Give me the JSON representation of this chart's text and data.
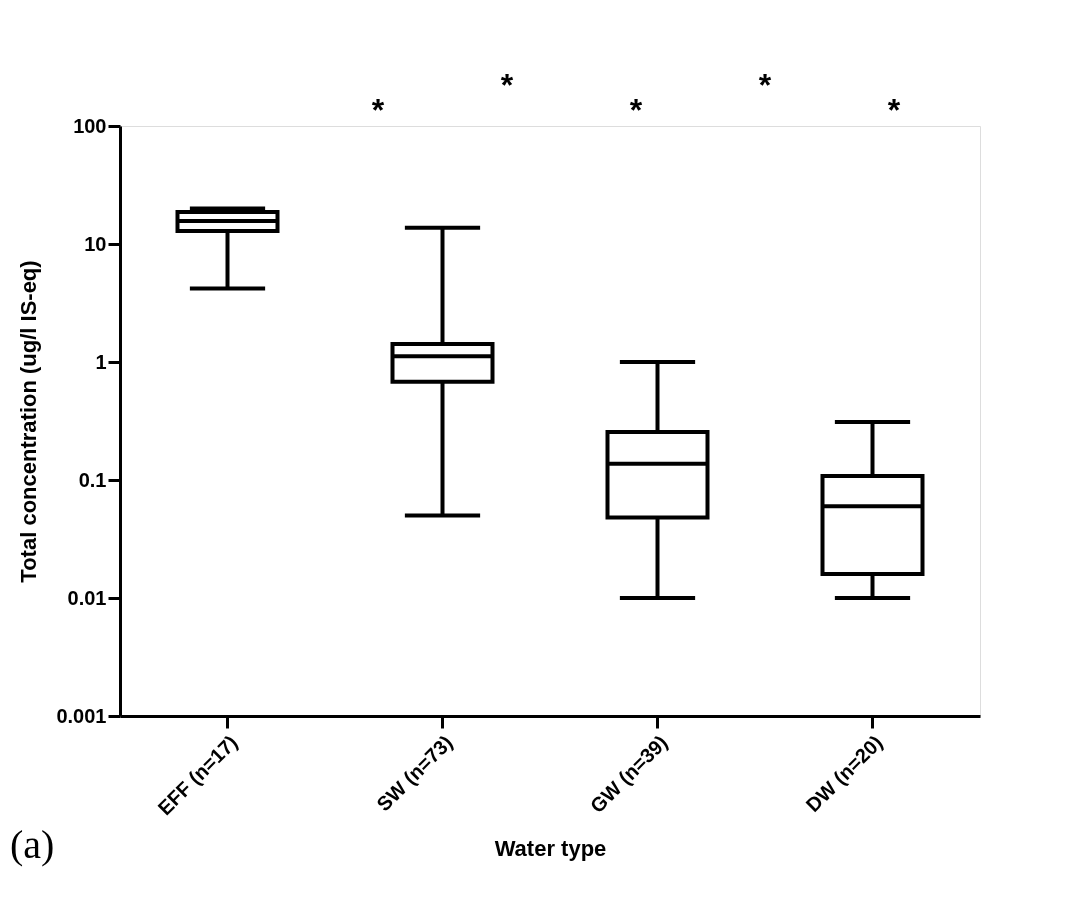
{
  "chart_data": {
    "type": "box",
    "xlabel": "Water type",
    "ylabel": "Total concentration (ug/l IS-eq)",
    "categories": [
      "EFF (n=17)",
      "SW (n=73)",
      "GW (n=39)",
      "DW (n=20)"
    ],
    "boxes": [
      {
        "low": 4.2,
        "q1": 12.9,
        "median": 15.7,
        "q3": 18.7,
        "high": 20
      },
      {
        "low": 0.05,
        "q1": 0.68,
        "median": 1.12,
        "q3": 1.42,
        "high": 13.7
      },
      {
        "low": 0.01,
        "q1": 0.048,
        "median": 0.137,
        "q3": 0.255,
        "high": 1
      },
      {
        "low": 0.01,
        "q1": 0.016,
        "median": 0.06,
        "q3": 0.108,
        "high": 0.31
      }
    ],
    "color": "#000000",
    "log": true,
    "ylim": [
      0.001,
      100
    ],
    "yticks": [
      0.001,
      0.01,
      0.1,
      1,
      10,
      100
    ],
    "grid": false,
    "annotations": [
      "*",
      "*",
      "*",
      "*",
      "*",
      "(a)"
    ]
  }
}
